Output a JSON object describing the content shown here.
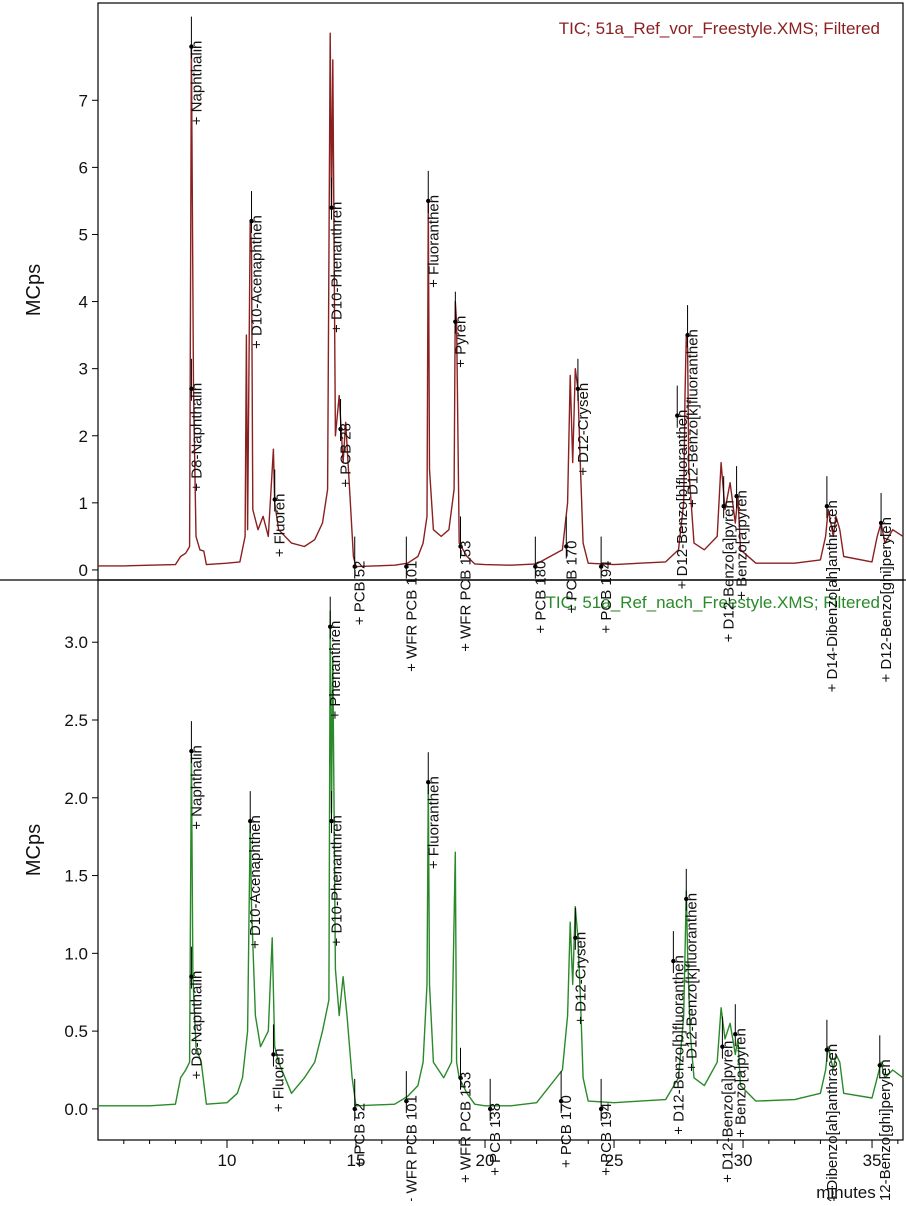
{
  "chart_data": [
    {
      "type": "line",
      "panel": "top",
      "title": "TIC;  51a_Ref_vor_Freestyle.XMS;  Filtered",
      "ylabel": "MCps",
      "color": "#8b2020",
      "xlim": [
        5.0,
        36.2
      ],
      "ylim": [
        -0.15,
        8.45
      ],
      "y_ticks": [
        "0",
        "1",
        "2",
        "3",
        "4",
        "5",
        "6",
        "7"
      ],
      "y_tick_values": [
        0,
        1,
        2,
        3,
        4,
        5,
        6,
        7
      ],
      "baseline": 0.08,
      "trace": [
        [
          5.0,
          0.06
        ],
        [
          6.0,
          0.06
        ],
        [
          7.0,
          0.07
        ],
        [
          8.0,
          0.08
        ],
        [
          8.2,
          0.2
        ],
        [
          8.4,
          0.25
        ],
        [
          8.55,
          0.35
        ],
        [
          8.62,
          7.8
        ],
        [
          8.7,
          2.7
        ],
        [
          8.8,
          0.5
        ],
        [
          8.95,
          0.3
        ],
        [
          9.1,
          0.28
        ],
        [
          9.2,
          0.08
        ],
        [
          10.0,
          0.1
        ],
        [
          10.5,
          0.12
        ],
        [
          10.7,
          0.5
        ],
        [
          10.75,
          3.5
        ],
        [
          10.8,
          0.6
        ],
        [
          10.9,
          5.2
        ],
        [
          10.95,
          4.8
        ],
        [
          11.0,
          0.9
        ],
        [
          11.2,
          0.6
        ],
        [
          11.4,
          0.8
        ],
        [
          11.6,
          0.5
        ],
        [
          11.8,
          1.8
        ],
        [
          11.85,
          1.0
        ],
        [
          12.0,
          0.6
        ],
        [
          12.5,
          0.4
        ],
        [
          13.0,
          0.35
        ],
        [
          13.4,
          0.45
        ],
        [
          13.7,
          0.7
        ],
        [
          13.9,
          1.2
        ],
        [
          14.0,
          8.0
        ],
        [
          14.05,
          5.4
        ],
        [
          14.1,
          7.6
        ],
        [
          14.2,
          2.0
        ],
        [
          14.35,
          2.6
        ],
        [
          14.5,
          1.6
        ],
        [
          14.6,
          2.2
        ],
        [
          14.75,
          1.2
        ],
        [
          14.9,
          0.2
        ],
        [
          15.0,
          0.05
        ],
        [
          16.5,
          0.07
        ],
        [
          17.0,
          0.1
        ],
        [
          17.4,
          0.2
        ],
        [
          17.6,
          0.4
        ],
        [
          17.75,
          0.8
        ],
        [
          17.8,
          5.5
        ],
        [
          17.85,
          1.5
        ],
        [
          18.0,
          0.6
        ],
        [
          18.3,
          0.5
        ],
        [
          18.6,
          0.6
        ],
        [
          18.8,
          1.2
        ],
        [
          18.85,
          4.0
        ],
        [
          18.9,
          3.7
        ],
        [
          19.0,
          0.4
        ],
        [
          19.3,
          0.2
        ],
        [
          19.6,
          0.09
        ],
        [
          20.0,
          0.08
        ],
        [
          21.0,
          0.07
        ],
        [
          22.0,
          0.09
        ],
        [
          23.0,
          0.3
        ],
        [
          23.2,
          1.0
        ],
        [
          23.3,
          2.9
        ],
        [
          23.4,
          1.6
        ],
        [
          23.5,
          3.0
        ],
        [
          23.6,
          2.7
        ],
        [
          23.7,
          1.5
        ],
        [
          23.8,
          0.4
        ],
        [
          24.0,
          0.1
        ],
        [
          25.0,
          0.08
        ],
        [
          26.0,
          0.1
        ],
        [
          27.0,
          0.12
        ],
        [
          27.5,
          0.3
        ],
        [
          27.7,
          1.0
        ],
        [
          27.75,
          2.6
        ],
        [
          27.8,
          3.5
        ],
        [
          27.85,
          3.3
        ],
        [
          27.9,
          1.5
        ],
        [
          28.1,
          0.4
        ],
        [
          28.5,
          0.3
        ],
        [
          29.0,
          0.5
        ],
        [
          29.15,
          1.6
        ],
        [
          29.3,
          0.9
        ],
        [
          29.5,
          1.3
        ],
        [
          29.7,
          0.7
        ],
        [
          29.8,
          1.1
        ],
        [
          29.9,
          0.3
        ],
        [
          30.5,
          0.1
        ],
        [
          32.0,
          0.1
        ],
        [
          33.0,
          0.15
        ],
        [
          33.2,
          0.5
        ],
        [
          33.3,
          0.9
        ],
        [
          33.5,
          0.5
        ],
        [
          33.6,
          0.8
        ],
        [
          33.75,
          0.6
        ],
        [
          33.9,
          0.2
        ],
        [
          35.0,
          0.12
        ],
        [
          35.2,
          0.5
        ],
        [
          35.35,
          0.7
        ],
        [
          35.5,
          0.4
        ],
        [
          35.8,
          0.6
        ],
        [
          36.2,
          0.5
        ]
      ],
      "peaks": [
        {
          "label": "Naphthalin",
          "x": 8.62,
          "y": 7.8
        },
        {
          "label": "D8-Naphthalin",
          "x": 8.62,
          "y": 2.7
        },
        {
          "label": "D10-Acenaphthen",
          "x": 10.95,
          "y": 5.2
        },
        {
          "label": "Fluoren",
          "x": 11.85,
          "y": 1.05
        },
        {
          "label": "D10-Phenanthren",
          "x": 14.05,
          "y": 5.4
        },
        {
          "label": "PCB 28",
          "x": 14.4,
          "y": 2.1
        },
        {
          "label": "PCB 52",
          "x": 14.95,
          "y": 0.05
        },
        {
          "label": "WFR PCB 101",
          "x": 16.95,
          "y": 0.05
        },
        {
          "label": "Fluoranthen",
          "x": 17.8,
          "y": 5.5
        },
        {
          "label": "Pyren",
          "x": 18.85,
          "y": 3.7
        },
        {
          "label": "WFR PCB 153",
          "x": 19.05,
          "y": 0.35
        },
        {
          "label": "PCB 180",
          "x": 21.95,
          "y": 0.05
        },
        {
          "label": "PCB 170",
          "x": 23.15,
          "y": 0.35
        },
        {
          "label": "D12-Crysen",
          "x": 23.6,
          "y": 2.7
        },
        {
          "label": "PCB 194",
          "x": 24.5,
          "y": 0.05
        },
        {
          "label": "D12-Benzo[b]fluoranthen",
          "x": 27.45,
          "y": 2.3
        },
        {
          "label": "D12-Benzo[k]fluoranthen",
          "x": 27.85,
          "y": 3.5
        },
        {
          "label": "D12-Benzo[a]pyren",
          "x": 29.25,
          "y": 0.95
        },
        {
          "label": "Benzo[a]pyren",
          "x": 29.75,
          "y": 1.1
        },
        {
          "label": "D14-Dibenzo[ah]anthracen",
          "x": 33.25,
          "y": 0.95
        },
        {
          "label": "D12-Benzo[ghi]perylen",
          "x": 35.35,
          "y": 0.7
        }
      ]
    },
    {
      "type": "line",
      "panel": "bottom",
      "title": "TIC;  51a_Ref_nach_Freestyle.XMS;  Filtered",
      "ylabel": "MCps",
      "xlabel": "minutes",
      "color": "#2a8a2a",
      "xlim": [
        5.0,
        36.2
      ],
      "ylim": [
        -0.2,
        3.4
      ],
      "y_ticks": [
        "0.0",
        "0.5",
        "1.0",
        "1.5",
        "2.0",
        "2.5",
        "3.0"
      ],
      "y_tick_values": [
        0.0,
        0.5,
        1.0,
        1.5,
        2.0,
        2.5,
        3.0
      ],
      "x_ticks": [
        "10",
        "15",
        "20",
        "25",
        "30",
        "35"
      ],
      "x_tick_values": [
        10,
        15,
        20,
        25,
        30,
        35
      ],
      "trace": [
        [
          5.0,
          0.02
        ],
        [
          6.0,
          0.02
        ],
        [
          7.0,
          0.02
        ],
        [
          8.0,
          0.03
        ],
        [
          8.2,
          0.2
        ],
        [
          8.4,
          0.25
        ],
        [
          8.55,
          0.3
        ],
        [
          8.62,
          2.3
        ],
        [
          8.68,
          0.85
        ],
        [
          8.8,
          0.4
        ],
        [
          9.0,
          0.3
        ],
        [
          9.2,
          0.03
        ],
        [
          10.0,
          0.04
        ],
        [
          10.4,
          0.1
        ],
        [
          10.6,
          0.2
        ],
        [
          10.8,
          0.5
        ],
        [
          10.9,
          1.85
        ],
        [
          10.95,
          1.3
        ],
        [
          11.1,
          0.6
        ],
        [
          11.3,
          0.4
        ],
        [
          11.6,
          0.5
        ],
        [
          11.75,
          1.1
        ],
        [
          11.85,
          0.4
        ],
        [
          12.0,
          0.3
        ],
        [
          12.5,
          0.1
        ],
        [
          13.0,
          0.2
        ],
        [
          13.4,
          0.3
        ],
        [
          13.7,
          0.5
        ],
        [
          13.95,
          0.7
        ],
        [
          14.0,
          3.2
        ],
        [
          14.05,
          1.9
        ],
        [
          14.1,
          2.9
        ],
        [
          14.2,
          0.9
        ],
        [
          14.35,
          0.6
        ],
        [
          14.5,
          0.85
        ],
        [
          14.65,
          0.6
        ],
        [
          14.85,
          0.2
        ],
        [
          15.0,
          0.02
        ],
        [
          16.5,
          0.03
        ],
        [
          17.0,
          0.08
        ],
        [
          17.4,
          0.15
        ],
        [
          17.6,
          0.3
        ],
        [
          17.75,
          0.8
        ],
        [
          17.8,
          2.1
        ],
        [
          17.85,
          0.8
        ],
        [
          18.0,
          0.3
        ],
        [
          18.4,
          0.2
        ],
        [
          18.7,
          0.3
        ],
        [
          18.85,
          1.65
        ],
        [
          18.9,
          0.3
        ],
        [
          19.0,
          0.2
        ],
        [
          19.3,
          0.1
        ],
        [
          19.6,
          0.03
        ],
        [
          20.0,
          0.02
        ],
        [
          21.0,
          0.02
        ],
        [
          22.0,
          0.04
        ],
        [
          23.0,
          0.25
        ],
        [
          23.2,
          0.6
        ],
        [
          23.3,
          1.2
        ],
        [
          23.4,
          0.8
        ],
        [
          23.5,
          1.3
        ],
        [
          23.6,
          1.1
        ],
        [
          23.7,
          0.7
        ],
        [
          23.8,
          0.2
        ],
        [
          24.0,
          0.05
        ],
        [
          25.0,
          0.04
        ],
        [
          26.0,
          0.05
        ],
        [
          27.0,
          0.06
        ],
        [
          27.5,
          0.2
        ],
        [
          27.7,
          0.6
        ],
        [
          27.8,
          1.4
        ],
        [
          27.85,
          1.0
        ],
        [
          27.95,
          0.5
        ],
        [
          28.1,
          0.2
        ],
        [
          28.5,
          0.15
        ],
        [
          29.0,
          0.3
        ],
        [
          29.15,
          0.65
        ],
        [
          29.3,
          0.45
        ],
        [
          29.5,
          0.55
        ],
        [
          29.7,
          0.35
        ],
        [
          29.8,
          0.45
        ],
        [
          29.9,
          0.15
        ],
        [
          30.5,
          0.05
        ],
        [
          32.0,
          0.06
        ],
        [
          33.0,
          0.1
        ],
        [
          33.2,
          0.25
        ],
        [
          33.3,
          0.4
        ],
        [
          33.5,
          0.25
        ],
        [
          33.6,
          0.35
        ],
        [
          33.75,
          0.3
        ],
        [
          33.9,
          0.1
        ],
        [
          35.0,
          0.07
        ],
        [
          35.2,
          0.2
        ],
        [
          35.35,
          0.3
        ],
        [
          35.5,
          0.2
        ],
        [
          35.8,
          0.25
        ],
        [
          36.2,
          0.2
        ]
      ],
      "peaks": [
        {
          "label": "Phenanthren",
          "x": 14.0,
          "y": 3.1
        },
        {
          "label": "Naphthalin",
          "x": 8.62,
          "y": 2.3
        },
        {
          "label": "D8-Naphthalin",
          "x": 8.62,
          "y": 0.85
        },
        {
          "label": "D10-Acenaphthen",
          "x": 10.9,
          "y": 1.85
        },
        {
          "label": "Fluoren",
          "x": 11.8,
          "y": 0.35
        },
        {
          "label": "D10-Phenanthren",
          "x": 14.05,
          "y": 1.85
        },
        {
          "label": "PCB 52",
          "x": 14.95,
          "y": 0.0
        },
        {
          "label": "WFR PCB 101",
          "x": 16.95,
          "y": 0.05
        },
        {
          "label": "Fluoranthen",
          "x": 17.8,
          "y": 2.1
        },
        {
          "label": "WFR PCB 153",
          "x": 19.05,
          "y": 0.2
        },
        {
          "label": "PCB 138",
          "x": 20.2,
          "y": 0.0
        },
        {
          "label": "PCB 170",
          "x": 22.95,
          "y": 0.05
        },
        {
          "label": "D12-Crysen",
          "x": 23.5,
          "y": 1.1
        },
        {
          "label": "PCB 194",
          "x": 24.5,
          "y": 0.0
        },
        {
          "label": "D12-Benzo[b]fluoranthen",
          "x": 27.3,
          "y": 0.95
        },
        {
          "label": "D12-Benzo[k]fluoranthen",
          "x": 27.8,
          "y": 1.35
        },
        {
          "label": "D12-Benzo[a]pyren",
          "x": 29.2,
          "y": 0.4
        },
        {
          "label": "Benzo[a]pyren",
          "x": 29.7,
          "y": 0.48
        },
        {
          "label": "D14-Dibenzo[ah]anthracen",
          "x": 33.25,
          "y": 0.38
        },
        {
          "label": "D12-Benzo[ghi]perylen",
          "x": 35.3,
          "y": 0.28
        }
      ]
    }
  ]
}
